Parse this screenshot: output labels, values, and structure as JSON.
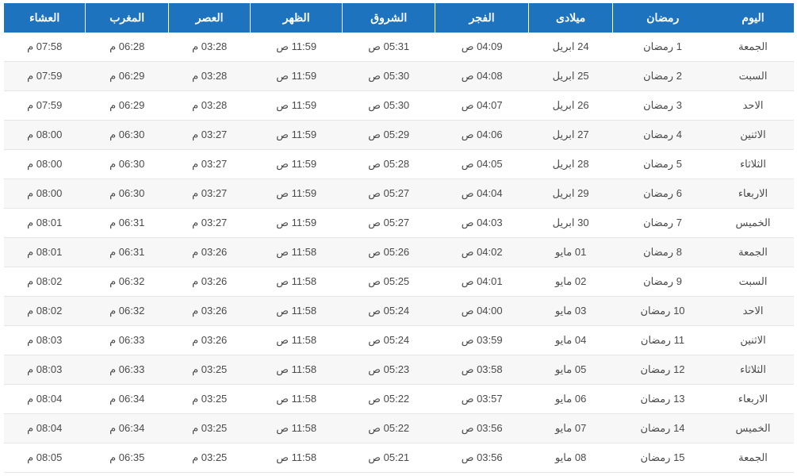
{
  "table": {
    "header_bg": "#1e73be",
    "header_fg": "#ffffff",
    "row_odd_bg": "#ffffff",
    "row_even_bg": "#f7f7f7",
    "border_color": "#e5e5e5",
    "text_color": "#4a4a4a",
    "columns": [
      "اليوم",
      "رمضان",
      "ميلادى",
      "الفجر",
      "الشروق",
      "الظهر",
      "العصر",
      "المغرب",
      "العشاء"
    ],
    "rows": [
      [
        "الجمعة",
        "1 رمضان",
        "24 ابريل",
        "04:09 ص",
        "05:31 ص",
        "11:59 ص",
        "03:28 م",
        "06:28 م",
        "07:58 م"
      ],
      [
        "السبت",
        "2 رمضان",
        "25 ابريل",
        "04:08 ص",
        "05:30 ص",
        "11:59 ص",
        "03:28 م",
        "06:29 م",
        "07:59 م"
      ],
      [
        "الاحد",
        "3 رمضان",
        "26 ابريل",
        "04:07 ص",
        "05:30 ص",
        "11:59 ص",
        "03:28 م",
        "06:29 م",
        "07:59 م"
      ],
      [
        "الاثنين",
        "4 رمضان",
        "27 ابريل",
        "04:06 ص",
        "05:29 ص",
        "11:59 ص",
        "03:27 م",
        "06:30 م",
        "08:00 م"
      ],
      [
        "الثلاثاء",
        "5 رمضان",
        "28 ابريل",
        "04:05 ص",
        "05:28 ص",
        "11:59 ص",
        "03:27 م",
        "06:30 م",
        "08:00 م"
      ],
      [
        "الاربعاء",
        "6 رمضان",
        "29 ابريل",
        "04:04 ص",
        "05:27 ص",
        "11:59 ص",
        "03:27 م",
        "06:30 م",
        "08:00 م"
      ],
      [
        "الخميس",
        "7 رمضان",
        "30 ابريل",
        "04:03 ص",
        "05:27 ص",
        "11:59 ص",
        "03:27 م",
        "06:31 م",
        "08:01 م"
      ],
      [
        "الجمعة",
        "8 رمضان",
        "01 مايو",
        "04:02 ص",
        "05:26 ص",
        "11:58 ص",
        "03:26 م",
        "06:31 م",
        "08:01 م"
      ],
      [
        "السبت",
        "9 رمضان",
        "02 مايو",
        "04:01 ص",
        "05:25 ص",
        "11:58 ص",
        "03:26 م",
        "06:32 م",
        "08:02 م"
      ],
      [
        "الاحد",
        "10 رمضان",
        "03 مايو",
        "04:00 ص",
        "05:24 ص",
        "11:58 ص",
        "03:26 م",
        "06:32 م",
        "08:02 م"
      ],
      [
        "الاثنين",
        "11 رمضان",
        "04 مايو",
        "03:59 ص",
        "05:24 ص",
        "11:58 ص",
        "03:26 م",
        "06:33 م",
        "08:03 م"
      ],
      [
        "الثلاثاء",
        "12 رمضان",
        "05 مايو",
        "03:58 ص",
        "05:23 ص",
        "11:58 ص",
        "03:25 م",
        "06:33 م",
        "08:03 م"
      ],
      [
        "الاربعاء",
        "13 رمضان",
        "06 مايو",
        "03:57 ص",
        "05:22 ص",
        "11:58 ص",
        "03:25 م",
        "06:34 م",
        "08:04 م"
      ],
      [
        "الخميس",
        "14 رمضان",
        "07 مايو",
        "03:56 ص",
        "05:22 ص",
        "11:58 ص",
        "03:25 م",
        "06:34 م",
        "08:04 م"
      ],
      [
        "الجمعة",
        "15 رمضان",
        "08 مايو",
        "03:56 ص",
        "05:21 ص",
        "11:58 ص",
        "03:25 م",
        "06:35 م",
        "08:05 م"
      ]
    ]
  }
}
